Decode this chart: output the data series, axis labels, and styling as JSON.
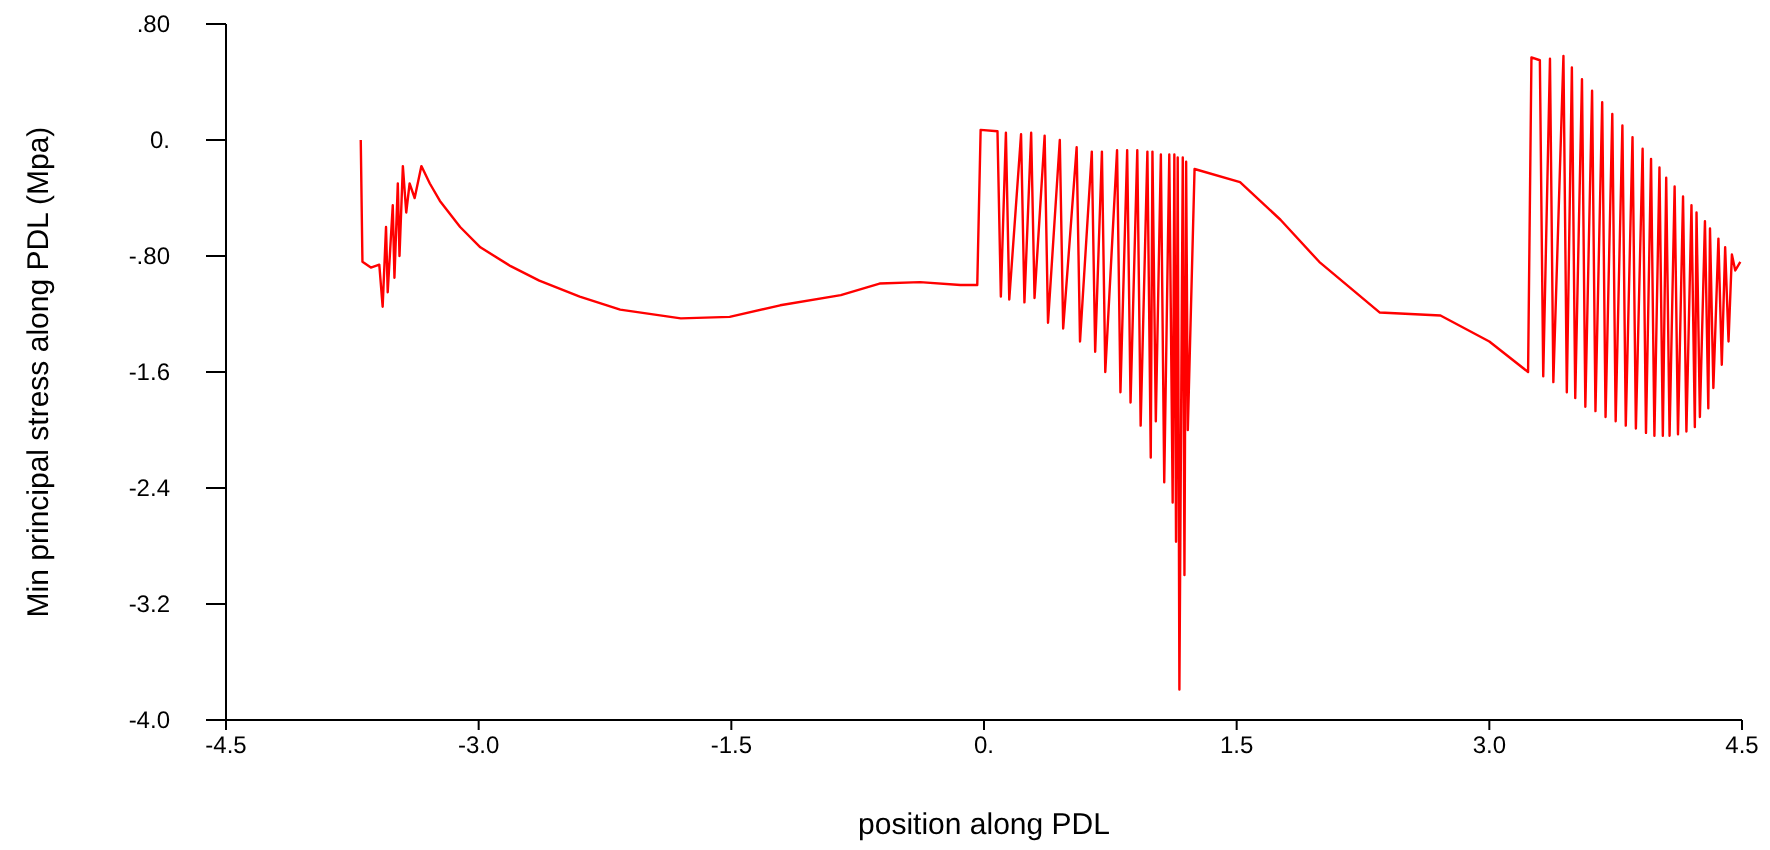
{
  "chart_data": {
    "type": "line",
    "xlabel": "position along PDL",
    "ylabel": "Min principal stress along PDL (Mpa)",
    "xlim": [
      -4.5,
      4.5
    ],
    "ylim": [
      -4.0,
      0.8
    ],
    "xticks": [
      -4.5,
      {
        "value": -3,
        "label": "-3.0"
      },
      -1.5,
      {
        "value": 0,
        "label": "0."
      },
      1.5,
      {
        "value": 3,
        "label": "3.0"
      },
      4.5
    ],
    "yticks": [
      {
        "value": 0.8,
        "label": ".80"
      },
      {
        "value": 0,
        "label": "0."
      },
      {
        "value": -0.8,
        "label": "-.80"
      },
      -1.6,
      -2.4,
      -3.2,
      {
        "value": -4,
        "label": "-4.0"
      }
    ],
    "grid": false,
    "line_style": "solid",
    "marker": "none",
    "series": [
      {
        "color": "#ff0000",
        "x": [
          -3.7,
          -3.69,
          -3.64,
          -3.59,
          -3.57,
          -3.55,
          -3.54,
          -3.51,
          -3.5,
          -3.48,
          -3.47,
          -3.45,
          -3.43,
          -3.41,
          -3.38,
          -3.34,
          -3.29,
          -3.23,
          -3.11,
          -2.99,
          -2.81,
          -2.64,
          -2.4,
          -2.16,
          -1.8,
          -1.51,
          -1.21,
          -0.85,
          -0.62,
          -0.38,
          -0.14,
          -0.04,
          -0.02,
          0.08,
          0.1,
          0.13,
          0.15,
          0.22,
          0.24,
          0.28,
          0.3,
          0.36,
          0.38,
          0.45,
          0.47,
          0.55,
          0.57,
          0.64,
          0.66,
          0.7,
          0.72,
          0.79,
          0.81,
          0.85,
          0.87,
          0.91,
          0.93,
          0.97,
          0.99,
          1.0,
          1.02,
          1.05,
          1.07,
          1.1,
          1.12,
          1.13,
          1.14,
          1.15,
          1.16,
          1.18,
          1.19,
          1.2,
          1.21,
          1.25,
          1.52,
          1.76,
          1.99,
          2.35,
          2.71,
          3.0,
          3.23,
          3.25,
          3.3,
          3.32,
          3.36,
          3.38,
          3.44,
          3.46,
          3.49,
          3.51,
          3.55,
          3.57,
          3.61,
          3.63,
          3.67,
          3.69,
          3.73,
          3.75,
          3.79,
          3.81,
          3.85,
          3.87,
          3.91,
          3.93,
          3.96,
          3.98,
          4.01,
          4.03,
          4.05,
          4.07,
          4.1,
          4.12,
          4.15,
          4.17,
          4.2,
          4.22,
          4.23,
          4.25,
          4.28,
          4.3,
          4.31,
          4.33,
          4.36,
          4.38,
          4.4,
          4.42,
          4.44,
          4.46,
          4.49
        ],
        "values": [
          0.0,
          -0.84,
          -0.88,
          -0.86,
          -1.15,
          -0.6,
          -1.05,
          -0.45,
          -0.95,
          -0.3,
          -0.8,
          -0.18,
          -0.5,
          -0.3,
          -0.4,
          -0.18,
          -0.3,
          -0.42,
          -0.6,
          -0.74,
          -0.87,
          -0.97,
          -1.08,
          -1.17,
          -1.23,
          -1.22,
          -1.14,
          -1.07,
          -0.99,
          -0.98,
          -1.0,
          -1.0,
          0.07,
          0.06,
          -1.08,
          0.05,
          -1.1,
          0.04,
          -1.12,
          0.05,
          -1.09,
          0.03,
          -1.26,
          0.0,
          -1.3,
          -0.05,
          -1.39,
          -0.08,
          -1.46,
          -0.08,
          -1.6,
          -0.07,
          -1.74,
          -0.07,
          -1.81,
          -0.07,
          -1.97,
          -0.08,
          -2.19,
          -0.08,
          -1.94,
          -0.1,
          -2.36,
          -0.1,
          -2.5,
          -0.1,
          -2.77,
          -0.12,
          -3.79,
          -0.12,
          -3.0,
          -0.15,
          -2.0,
          -0.2,
          -0.29,
          -0.55,
          -0.84,
          -1.19,
          -1.21,
          -1.39,
          -1.6,
          0.57,
          0.55,
          -1.63,
          0.56,
          -1.67,
          0.58,
          -1.74,
          0.5,
          -1.78,
          0.42,
          -1.84,
          0.34,
          -1.87,
          0.26,
          -1.91,
          0.18,
          -1.94,
          0.1,
          -1.97,
          0.02,
          -1.99,
          -0.06,
          -2.02,
          -0.13,
          -2.04,
          -0.19,
          -2.04,
          -0.26,
          -2.04,
          -0.32,
          -2.03,
          -0.39,
          -2.01,
          -0.45,
          -1.98,
          -0.5,
          -1.91,
          -0.56,
          -1.85,
          -0.61,
          -1.71,
          -0.68,
          -1.55,
          -0.74,
          -1.39,
          -0.79,
          -0.9,
          -0.84
        ]
      }
    ]
  }
}
